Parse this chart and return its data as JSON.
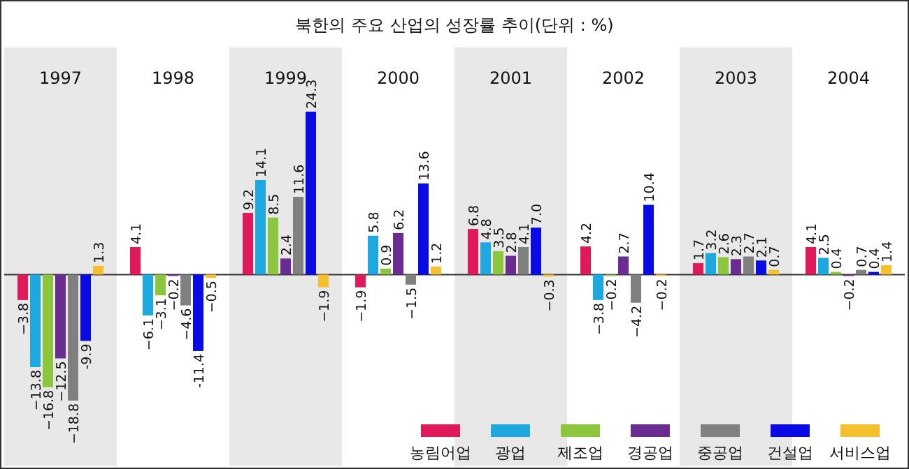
{
  "chart_data": {
    "type": "bar",
    "title": "북한의 주요 산업의 성장률 추이(단위 : %)",
    "categories": [
      "1997",
      "1998",
      "1999",
      "2000",
      "2001",
      "2002",
      "2003",
      "2004"
    ],
    "series": [
      {
        "name": "농림어업",
        "color": "#e0195a",
        "values": [
          -3.8,
          4.1,
          9.2,
          -1.9,
          6.8,
          4.2,
          1.7,
          4.1
        ]
      },
      {
        "name": "광업",
        "color": "#1ea8e0",
        "values": [
          -13.8,
          -6.1,
          14.1,
          5.8,
          4.8,
          -3.8,
          3.2,
          2.5
        ]
      },
      {
        "name": "제조업",
        "color": "#8cc63f",
        "values": [
          -16.8,
          -3.1,
          8.5,
          0.9,
          3.5,
          -0.2,
          2.6,
          0.4
        ]
      },
      {
        "name": "경공업",
        "color": "#6a2c91",
        "values": [
          -12.5,
          -0.2,
          2.4,
          6.2,
          2.8,
          2.7,
          2.3,
          -0.2
        ]
      },
      {
        "name": "중공업",
        "color": "#808080",
        "values": [
          -18.8,
          -4.6,
          11.6,
          -1.5,
          4.1,
          -4.2,
          2.7,
          0.7
        ]
      },
      {
        "name": "건설업",
        "color": "#0a0ae6",
        "values": [
          -9.9,
          -11.4,
          24.3,
          13.6,
          7.0,
          10.4,
          2.1,
          0.4
        ],
        "value_labels": [
          "-9.9",
          "-11.4",
          "24.3",
          "13.6",
          "7.0",
          "10.4",
          "2.1",
          "0.4"
        ]
      },
      {
        "name": "서비스업",
        "color": "#f5c02e",
        "values": [
          1.3,
          -0.5,
          -1.9,
          1.2,
          -0.3,
          -0.2,
          0.7,
          1.4
        ]
      }
    ],
    "relative": false,
    "data_labels": true,
    "legend": "bottom right"
  }
}
